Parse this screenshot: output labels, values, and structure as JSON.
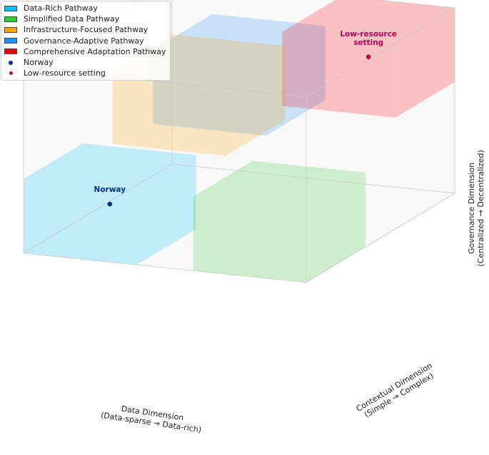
{
  "chart_data": {
    "type": "3d-box",
    "xlabel": "Data Dimension\n(Data-sparse → Data-rich)",
    "ylabel": "Contextual Dimension\n(Simple → Complex)",
    "zlabel": "Governance Dimension\n(Centralized → Decentralized)",
    "xlim": [
      0,
      1
    ],
    "ylim": [
      0,
      1
    ],
    "zlim": [
      0,
      1
    ],
    "grid": false,
    "legend_position": "top-left",
    "regions": [
      {
        "name": "Data-Rich Pathway",
        "color": "#00bfff",
        "x": [
          0.6,
          1.0
        ],
        "y": [
          0.0,
          0.4
        ],
        "z": [
          0.0,
          0.4
        ]
      },
      {
        "name": "Simplified Data Pathway",
        "color": "#32cd32",
        "x": [
          0.0,
          0.4
        ],
        "y": [
          0.0,
          0.4
        ],
        "z": [
          0.0,
          0.4
        ]
      },
      {
        "name": "Infrastructure-Focused Pathway",
        "color": "#ffa500",
        "x": [
          0.6,
          1.0
        ],
        "y": [
          0.6,
          1.0
        ],
        "z": [
          0.3,
          0.7
        ]
      },
      {
        "name": "Governance-Adaptive Pathway",
        "color": "#1e90ff",
        "x": [
          0.3,
          0.7
        ],
        "y": [
          0.3,
          0.7
        ],
        "z": [
          0.6,
          1.0
        ]
      },
      {
        "name": "Comprehensive Adaptation Pathway",
        "color": "#ff0000",
        "x": [
          0.0,
          0.4
        ],
        "y": [
          0.6,
          1.0
        ],
        "z": [
          0.6,
          1.0
        ]
      }
    ],
    "points": [
      {
        "name": "Norway",
        "label": "Norway",
        "color": "#00338d",
        "label_color": "#00338d",
        "x": 0.8,
        "y": 0.2,
        "z": 0.2
      },
      {
        "name": "Low-resource setting",
        "label": "Low-resource\nsetting",
        "color": "#b5005b",
        "label_color": "#b5005b",
        "x": 0.2,
        "y": 0.8,
        "z": 0.8
      }
    ]
  }
}
